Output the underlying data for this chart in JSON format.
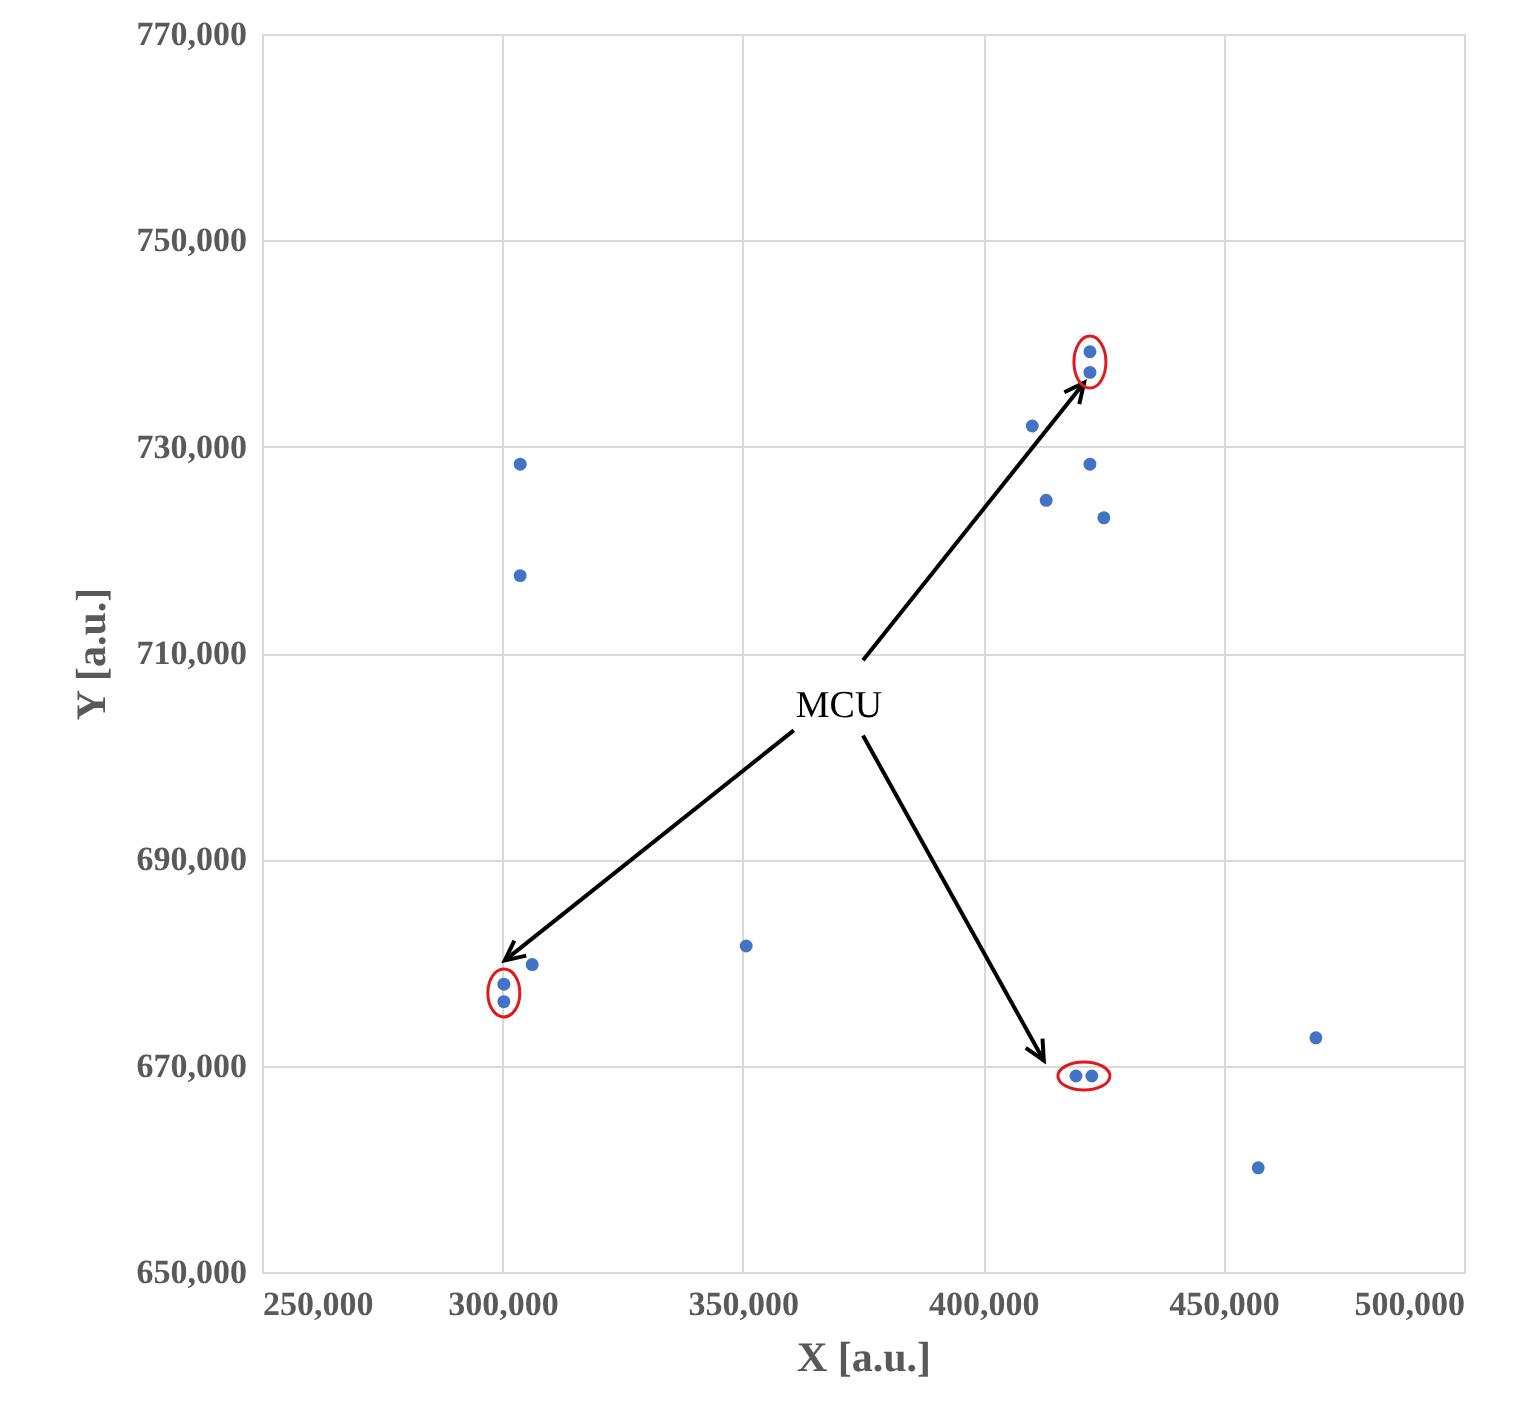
{
  "chart_data": {
    "type": "scatter",
    "xlabel": "X [a.u.]",
    "ylabel": "Y [a.u.]",
    "x": [
      303700,
      303700,
      422200,
      422200,
      410200,
      422200,
      413100,
      425100,
      300300,
      300300,
      306200,
      350700,
      419300,
      422600,
      469200,
      457200
    ],
    "series": [
      {
        "color": "#4472c4",
        "values": [
          728300,
          717500,
          739200,
          737200,
          732000,
          728300,
          724800,
          723100,
          677900,
          676200,
          679800,
          681600,
          669000,
          669000,
          672700,
          660100
        ]
      }
    ],
    "xlim": [
      250000,
      500000
    ],
    "xticks": [
      {
        "value": 250000,
        "label": "250,000"
      },
      {
        "value": 300000,
        "label": "300,000"
      },
      {
        "value": 350000,
        "label": "350,000"
      },
      {
        "value": 400000,
        "label": "400,000"
      },
      {
        "value": 450000,
        "label": "450,000"
      },
      {
        "value": 500000,
        "label": "500,000"
      }
    ],
    "ylim": [
      650000,
      770000
    ],
    "yticks": [
      {
        "value": 650000,
        "label": "650,000"
      },
      {
        "value": 670000,
        "label": "670,000"
      },
      {
        "value": 690000,
        "label": "690,000"
      },
      {
        "value": 710000,
        "label": "710,000"
      },
      {
        "value": 730000,
        "label": "730,000"
      },
      {
        "value": 750000,
        "label": "750,000"
      },
      {
        "value": 770000,
        "label": "770,000"
      }
    ],
    "annotations": [
      {
        "text": "MCU",
        "x": 421000,
        "y": 736200
      }
    ],
    "grid": true,
    "marker": "circle"
  }
}
